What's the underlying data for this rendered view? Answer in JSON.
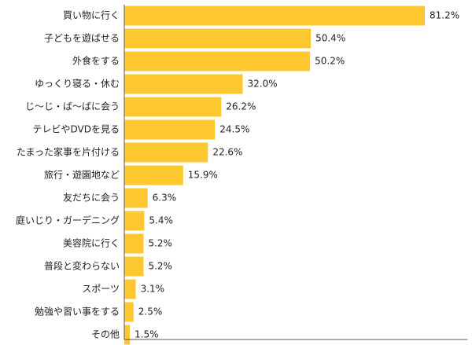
{
  "chart_data": {
    "type": "bar",
    "orientation": "horizontal",
    "categories": [
      "買い物に行く",
      "子どもを遊ばせる",
      "外食をする",
      "ゆっくり寝る・休む",
      "じ～じ・ば～ばに会う",
      "テレビやDVDを見る",
      "たまった家事を片付ける",
      "旅行・遊園地など",
      "友だちに会う",
      "庭いじり・ガーデニング",
      "美容院に行く",
      "普段と変わらない",
      "スポーツ",
      "勉強や習い事をする",
      "その他"
    ],
    "values": [
      81.2,
      50.4,
      50.2,
      32.0,
      26.2,
      24.5,
      22.6,
      15.9,
      6.3,
      5.4,
      5.2,
      5.2,
      3.1,
      2.5,
      1.5
    ],
    "value_labels": [
      "81.2%",
      "50.4%",
      "50.2%",
      "32.0%",
      "26.2%",
      "24.5%",
      "22.6%",
      "15.9%",
      "6.3%",
      "5.4%",
      "5.2%",
      "5.2%",
      "3.1%",
      "2.5%",
      "1.5%"
    ],
    "xlim": [
      0,
      100
    ],
    "grid": false,
    "legend": "none",
    "colors": {
      "bar": "#FDC82F",
      "axis": "#555555",
      "text": "#222222"
    }
  }
}
